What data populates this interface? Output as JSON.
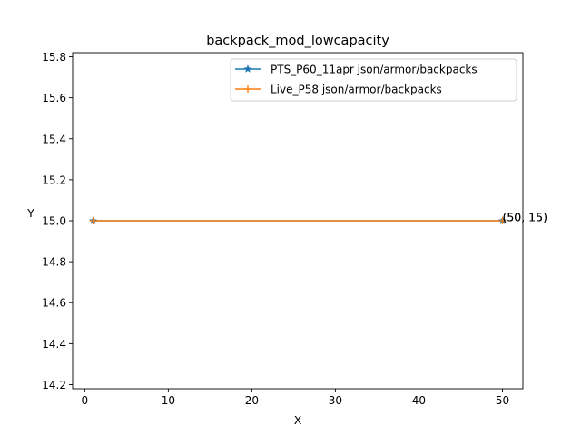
{
  "chart_data": {
    "type": "line",
    "title": "backpack_mod_lowcapacity",
    "xlabel": "X",
    "ylabel": "Y",
    "xlim": [
      -1.45,
      52.45
    ],
    "ylim": [
      14.18,
      15.82
    ],
    "xticks": [
      0,
      10,
      20,
      30,
      40,
      50
    ],
    "yticks": [
      14.2,
      14.4,
      14.6,
      14.8,
      15.0,
      15.2,
      15.4,
      15.6,
      15.8
    ],
    "grid": false,
    "legend_position": "top-right",
    "series": [
      {
        "name": "PTS_P60_11apr json/armor/backpacks",
        "color": "#1f77b4",
        "marker": "star",
        "x": [
          1,
          50
        ],
        "y": [
          15,
          15
        ]
      },
      {
        "name": "Live_P58 json/armor/backpacks",
        "color": "#ff7f0e",
        "marker": "plus",
        "x": [
          1,
          50
        ],
        "y": [
          15,
          15
        ]
      }
    ],
    "annotations": [
      {
        "text": "(50, 15)",
        "x": 50,
        "y": 15
      },
      {
        "text": "(50, 15)",
        "x": 50,
        "y": 15
      }
    ]
  }
}
